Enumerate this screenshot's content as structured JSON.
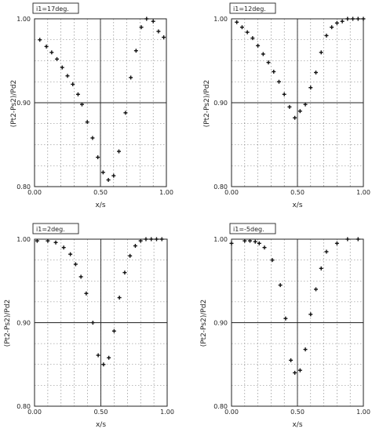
{
  "chart_data": [
    {
      "type": "scatter",
      "title": "i1=17deg.",
      "xlabel": "x/s",
      "ylabel": "(Pt2-Ps2)/Pd2",
      "xlim": [
        0,
        1
      ],
      "ylim": [
        0.8,
        1.0
      ],
      "xticks": [
        "0.00",
        "0.50",
        "1.00"
      ],
      "yticks": [
        "1.00",
        "0.90",
        "0.80"
      ],
      "grid": true,
      "x": [
        0.04,
        0.09,
        0.13,
        0.17,
        0.21,
        0.25,
        0.29,
        0.33,
        0.36,
        0.4,
        0.44,
        0.48,
        0.52,
        0.56,
        0.6,
        0.64,
        0.69,
        0.73,
        0.77,
        0.81,
        0.85,
        0.9,
        0.94,
        0.98
      ],
      "y": [
        0.975,
        0.967,
        0.96,
        0.952,
        0.942,
        0.932,
        0.922,
        0.91,
        0.898,
        0.877,
        0.858,
        0.835,
        0.817,
        0.808,
        0.813,
        0.842,
        0.888,
        0.93,
        0.962,
        0.99,
        1.0,
        0.997,
        0.985,
        0.978
      ]
    },
    {
      "type": "scatter",
      "title": "i1=12deg.",
      "xlabel": "x/s",
      "ylabel": "(Pt2-Ps2)/Pd2",
      "xlim": [
        0,
        1
      ],
      "ylim": [
        0.8,
        1.0
      ],
      "xticks": [
        "0.00",
        "0.50",
        "1.00"
      ],
      "yticks": [
        "1.00",
        "0.90",
        "0.80"
      ],
      "grid": true,
      "x": [
        0.04,
        0.08,
        0.12,
        0.16,
        0.2,
        0.24,
        0.28,
        0.32,
        0.36,
        0.4,
        0.44,
        0.48,
        0.52,
        0.56,
        0.6,
        0.64,
        0.68,
        0.72,
        0.76,
        0.8,
        0.84,
        0.88,
        0.92,
        0.96,
        1.0
      ],
      "y": [
        0.996,
        0.99,
        0.984,
        0.977,
        0.968,
        0.958,
        0.948,
        0.937,
        0.925,
        0.91,
        0.895,
        0.882,
        0.89,
        0.898,
        0.918,
        0.936,
        0.96,
        0.98,
        0.99,
        0.995,
        0.997,
        1.0,
        1.0,
        1.0,
        1.0
      ]
    },
    {
      "type": "scatter",
      "title": "i1=2deg.",
      "xlabel": "x/s",
      "ylabel": "(Pt2-Ps2)/Pd2",
      "xlim": [
        0,
        1
      ],
      "ylim": [
        0.8,
        1.0
      ],
      "xticks": [
        "0.00",
        "0.50",
        "1.00"
      ],
      "yticks": [
        "1.00",
        "0.90",
        "0.80"
      ],
      "grid": true,
      "x": [
        0.02,
        0.1,
        0.16,
        0.22,
        0.27,
        0.31,
        0.35,
        0.39,
        0.44,
        0.48,
        0.52,
        0.56,
        0.6,
        0.64,
        0.68,
        0.72,
        0.76,
        0.8,
        0.84,
        0.88,
        0.92,
        0.96
      ],
      "y": [
        0.998,
        0.998,
        0.996,
        0.99,
        0.982,
        0.97,
        0.955,
        0.935,
        0.9,
        0.861,
        0.85,
        0.858,
        0.89,
        0.93,
        0.96,
        0.98,
        0.992,
        0.998,
        1.0,
        1.0,
        1.0,
        1.0
      ]
    },
    {
      "type": "scatter",
      "title": "i1=-5deg.",
      "xlabel": "x/s",
      "ylabel": "(Pt2-Ps2)/Pd2",
      "xlim": [
        0,
        1
      ],
      "ylim": [
        0.8,
        1.0
      ],
      "xticks": [
        "0.00",
        "0.50",
        "1.00"
      ],
      "yticks": [
        "1.00",
        "0.90",
        "0.80"
      ],
      "grid": true,
      "x": [
        0.0,
        0.1,
        0.14,
        0.18,
        0.21,
        0.25,
        0.31,
        0.37,
        0.41,
        0.45,
        0.48,
        0.52,
        0.56,
        0.6,
        0.64,
        0.68,
        0.72,
        0.8,
        0.88,
        0.96
      ],
      "y": [
        0.995,
        0.998,
        0.998,
        0.997,
        0.995,
        0.99,
        0.975,
        0.945,
        0.905,
        0.855,
        0.84,
        0.843,
        0.868,
        0.91,
        0.94,
        0.965,
        0.985,
        0.995,
        1.0,
        1.0
      ]
    }
  ]
}
